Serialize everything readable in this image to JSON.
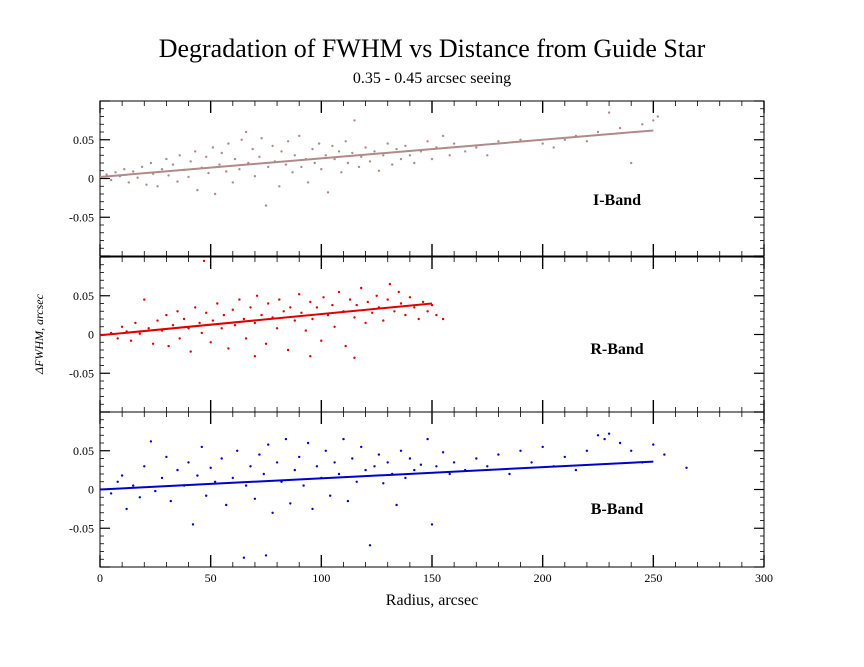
{
  "chart_data": {
    "type": "scatter",
    "title": "Degradation of FWHM vs Distance from Guide Star",
    "subtitle": "0.35 - 0.45 arcsec seeing",
    "xlabel": "Radius, arcsec",
    "ylabel": "ΔFWHM, arcsec",
    "xlim": [
      0,
      300
    ],
    "x_ticks": [
      0,
      50,
      100,
      150,
      200,
      250,
      300
    ],
    "x_tick_labels": [
      "0",
      "50",
      "100",
      "150",
      "200",
      "250",
      "300"
    ],
    "ylim": [
      -0.1,
      0.1
    ],
    "y_ticks": [
      -0.05,
      0,
      0.05
    ],
    "y_tick_labels": [
      "-0.05",
      "0",
      "0.05"
    ],
    "grid": false,
    "panels": [
      {
        "name": "I-Band",
        "label": "I-Band",
        "color": "#b08a8a",
        "fit": {
          "x": [
            0,
            250
          ],
          "y": [
            0.002,
            0.062
          ]
        },
        "points": [
          [
            3,
            0.005
          ],
          [
            5,
            -0.002
          ],
          [
            7,
            0.008
          ],
          [
            9,
            0.003
          ],
          [
            11,
            0.012
          ],
          [
            13,
            -0.005
          ],
          [
            15,
            0.009
          ],
          [
            17,
            0.001
          ],
          [
            19,
            0.015
          ],
          [
            21,
            -0.008
          ],
          [
            23,
            0.02
          ],
          [
            24,
            0.006
          ],
          [
            26,
            -0.01
          ],
          [
            28,
            0.012
          ],
          [
            30,
            0.025
          ],
          [
            31,
            0.004
          ],
          [
            33,
            0.018
          ],
          [
            35,
            -0.004
          ],
          [
            36,
            0.03
          ],
          [
            38,
            0.011
          ],
          [
            40,
            0.002
          ],
          [
            41,
            0.022
          ],
          [
            43,
            0.035
          ],
          [
            44,
            -0.015
          ],
          [
            46,
            0.014
          ],
          [
            48,
            0.028
          ],
          [
            49,
            0.007
          ],
          [
            51,
            0.04
          ],
          [
            52,
            -0.02
          ],
          [
            54,
            0.018
          ],
          [
            55,
            0.033
          ],
          [
            57,
            0.009
          ],
          [
            58,
            0.045
          ],
          [
            60,
            -0.005
          ],
          [
            61,
            0.025
          ],
          [
            63,
            0.012
          ],
          [
            64,
            0.05
          ],
          [
            66,
            0.06
          ],
          [
            67,
            0.02
          ],
          [
            69,
            0.038
          ],
          [
            70,
            0.003
          ],
          [
            72,
            0.028
          ],
          [
            73,
            0.052
          ],
          [
            75,
            -0.035
          ],
          [
            76,
            0.015
          ],
          [
            78,
            0.042
          ],
          [
            79,
            0.022
          ],
          [
            81,
            -0.01
          ],
          [
            82,
            0.035
          ],
          [
            84,
            0.018
          ],
          [
            85,
            0.048
          ],
          [
            87,
            0.008
          ],
          [
            88,
            0.03
          ],
          [
            90,
            0.055
          ],
          [
            91,
            0.015
          ],
          [
            93,
            0.025
          ],
          [
            94,
            -0.005
          ],
          [
            96,
            0.038
          ],
          [
            97,
            0.02
          ],
          [
            99,
            0.045
          ],
          [
            100,
            0.012
          ],
          [
            102,
            0.03
          ],
          [
            103,
            -0.018
          ],
          [
            105,
            0.042
          ],
          [
            106,
            0.025
          ],
          [
            108,
            0.035
          ],
          [
            109,
            0.008
          ],
          [
            111,
            0.048
          ],
          [
            112,
            0.02
          ],
          [
            114,
            0.033
          ],
          [
            115,
            0.075
          ],
          [
            117,
            0.015
          ],
          [
            118,
            0.028
          ],
          [
            120,
            0.04
          ],
          [
            122,
            0.022
          ],
          [
            124,
            0.035
          ],
          [
            126,
            0.01
          ],
          [
            128,
            0.03
          ],
          [
            130,
            0.045
          ],
          [
            132,
            0.018
          ],
          [
            134,
            0.038
          ],
          [
            136,
            0.025
          ],
          [
            138,
            0.042
          ],
          [
            140,
            0.03
          ],
          [
            142,
            0.02
          ],
          [
            145,
            0.035
          ],
          [
            148,
            0.048
          ],
          [
            150,
            0.025
          ],
          [
            152,
            0.04
          ],
          [
            155,
            0.055
          ],
          [
            158,
            0.03
          ],
          [
            160,
            0.045
          ],
          [
            165,
            0.035
          ],
          [
            170,
            0.04
          ],
          [
            175,
            0.03
          ],
          [
            180,
            0.048
          ],
          [
            190,
            0.05
          ],
          [
            200,
            0.045
          ],
          [
            205,
            0.04
          ],
          [
            210,
            0.05
          ],
          [
            215,
            0.055
          ],
          [
            220,
            0.048
          ],
          [
            225,
            0.06
          ],
          [
            230,
            0.085
          ],
          [
            235,
            0.065
          ],
          [
            240,
            0.02
          ],
          [
            245,
            0.07
          ],
          [
            250,
            0.075
          ],
          [
            252,
            0.08
          ]
        ]
      },
      {
        "name": "R-Band",
        "label": "R-Band",
        "color": "#dd0000",
        "fit": {
          "x": [
            0,
            150
          ],
          "y": [
            -0.001,
            0.04
          ]
        },
        "points": [
          [
            5,
            0.002
          ],
          [
            8,
            -0.005
          ],
          [
            10,
            0.01
          ],
          [
            12,
            0.004
          ],
          [
            14,
            -0.008
          ],
          [
            16,
            0.015
          ],
          [
            18,
            0.001
          ],
          [
            20,
            0.045
          ],
          [
            22,
            0.008
          ],
          [
            24,
            -0.012
          ],
          [
            26,
            0.018
          ],
          [
            28,
            0.005
          ],
          [
            30,
            0.025
          ],
          [
            31,
            -0.015
          ],
          [
            33,
            0.012
          ],
          [
            35,
            0.03
          ],
          [
            36,
            -0.005
          ],
          [
            38,
            0.02
          ],
          [
            40,
            0.008
          ],
          [
            41,
            -0.022
          ],
          [
            43,
            0.035
          ],
          [
            45,
            0.015
          ],
          [
            46,
            0.002
          ],
          [
            48,
            0.028
          ],
          [
            50,
            -0.01
          ],
          [
            51,
            0.018
          ],
          [
            53,
            0.04
          ],
          [
            55,
            0.008
          ],
          [
            56,
            0.025
          ],
          [
            58,
            -0.018
          ],
          [
            60,
            0.032
          ],
          [
            61,
            0.012
          ],
          [
            63,
            0.045
          ],
          [
            65,
            0.02
          ],
          [
            66,
            -0.005
          ],
          [
            68,
            0.035
          ],
          [
            70,
            0.015
          ],
          [
            71,
            0.05
          ],
          [
            73,
            0.025
          ],
          [
            75,
            -0.012
          ],
          [
            76,
            0.04
          ],
          [
            78,
            0.022
          ],
          [
            80,
            0.008
          ],
          [
            81,
            0.045
          ],
          [
            83,
            0.03
          ],
          [
            85,
            -0.02
          ],
          [
            86,
            0.035
          ],
          [
            88,
            0.018
          ],
          [
            90,
            0.052
          ],
          [
            91,
            0.028
          ],
          [
            93,
            0.005
          ],
          [
            95,
            0.042
          ],
          [
            96,
            0.02
          ],
          [
            98,
            0.035
          ],
          [
            100,
            -0.008
          ],
          [
            101,
            0.048
          ],
          [
            103,
            0.025
          ],
          [
            105,
            0.038
          ],
          [
            106,
            0.01
          ],
          [
            108,
            0.055
          ],
          [
            110,
            0.03
          ],
          [
            111,
            -0.015
          ],
          [
            113,
            0.045
          ],
          [
            115,
            0.022
          ],
          [
            116,
            0.038
          ],
          [
            118,
            0.06
          ],
          [
            120,
            0.015
          ],
          [
            121,
            0.042
          ],
          [
            123,
            0.028
          ],
          [
            125,
            0.05
          ],
          [
            126,
            0.035
          ],
          [
            128,
            0.018
          ],
          [
            130,
            0.045
          ],
          [
            131,
            0.065
          ],
          [
            133,
            0.03
          ],
          [
            135,
            0.055
          ],
          [
            136,
            0.04
          ],
          [
            138,
            0.025
          ],
          [
            140,
            0.048
          ],
          [
            142,
            0.035
          ],
          [
            144,
            0.02
          ],
          [
            146,
            0.042
          ],
          [
            148,
            0.03
          ],
          [
            150,
            0.038
          ],
          [
            152,
            0.025
          ],
          [
            155,
            0.02
          ],
          [
            47,
            0.095
          ],
          [
            70,
            -0.028
          ],
          [
            95,
            -0.028
          ],
          [
            115,
            -0.03
          ]
        ]
      },
      {
        "name": "B-Band",
        "label": "B-Band",
        "color": "#0000cc",
        "fit": {
          "x": [
            0,
            250
          ],
          "y": [
            0.0,
            0.036
          ]
        },
        "points": [
          [
            5,
            -0.005
          ],
          [
            8,
            0.01
          ],
          [
            10,
            0.018
          ],
          [
            12,
            -0.025
          ],
          [
            15,
            0.005
          ],
          [
            18,
            -0.01
          ],
          [
            20,
            0.03
          ],
          [
            23,
            0.062
          ],
          [
            25,
            -0.002
          ],
          [
            28,
            0.015
          ],
          [
            30,
            0.042
          ],
          [
            32,
            -0.015
          ],
          [
            35,
            0.025
          ],
          [
            38,
            0.005
          ],
          [
            40,
            0.035
          ],
          [
            42,
            -0.045
          ],
          [
            44,
            0.018
          ],
          [
            46,
            0.055
          ],
          [
            48,
            -0.008
          ],
          [
            50,
            0.028
          ],
          [
            52,
            0.01
          ],
          [
            55,
            0.04
          ],
          [
            57,
            -0.02
          ],
          [
            60,
            0.015
          ],
          [
            62,
            0.05
          ],
          [
            65,
            -0.088
          ],
          [
            66,
            0.005
          ],
          [
            68,
            0.03
          ],
          [
            70,
            -0.012
          ],
          [
            72,
            0.045
          ],
          [
            74,
            0.02
          ],
          [
            75,
            -0.085
          ],
          [
            76,
            0.058
          ],
          [
            78,
            -0.03
          ],
          [
            80,
            0.035
          ],
          [
            82,
            0.01
          ],
          [
            84,
            0.065
          ],
          [
            86,
            -0.018
          ],
          [
            88,
            0.025
          ],
          [
            90,
            0.042
          ],
          [
            92,
            0.005
          ],
          [
            94,
            0.06
          ],
          [
            96,
            -0.025
          ],
          [
            98,
            0.03
          ],
          [
            100,
            0.015
          ],
          [
            102,
            0.05
          ],
          [
            104,
            -0.008
          ],
          [
            106,
            0.035
          ],
          [
            108,
            0.02
          ],
          [
            110,
            0.065
          ],
          [
            112,
            -0.015
          ],
          [
            114,
            0.04
          ],
          [
            116,
            0.01
          ],
          [
            118,
            0.055
          ],
          [
            120,
            0.025
          ],
          [
            122,
            -0.072
          ],
          [
            124,
            0.03
          ],
          [
            126,
            0.045
          ],
          [
            128,
            0.008
          ],
          [
            130,
            0.035
          ],
          [
            132,
            0.02
          ],
          [
            134,
            -0.02
          ],
          [
            136,
            0.05
          ],
          [
            138,
            0.015
          ],
          [
            140,
            0.04
          ],
          [
            142,
            0.025
          ],
          [
            145,
            0.032
          ],
          [
            148,
            0.065
          ],
          [
            150,
            -0.045
          ],
          [
            152,
            0.03
          ],
          [
            155,
            0.048
          ],
          [
            158,
            0.02
          ],
          [
            160,
            0.035
          ],
          [
            165,
            0.025
          ],
          [
            170,
            0.04
          ],
          [
            175,
            0.03
          ],
          [
            180,
            0.045
          ],
          [
            185,
            0.02
          ],
          [
            190,
            0.05
          ],
          [
            195,
            0.035
          ],
          [
            200,
            0.055
          ],
          [
            205,
            0.03
          ],
          [
            210,
            0.042
          ],
          [
            215,
            0.025
          ],
          [
            220,
            0.05
          ],
          [
            225,
            0.07
          ],
          [
            228,
            0.065
          ],
          [
            230,
            0.072
          ],
          [
            235,
            0.06
          ],
          [
            240,
            0.05
          ],
          [
            245,
            0.035
          ],
          [
            250,
            0.058
          ],
          [
            255,
            0.045
          ],
          [
            265,
            0.028
          ]
        ]
      }
    ]
  }
}
